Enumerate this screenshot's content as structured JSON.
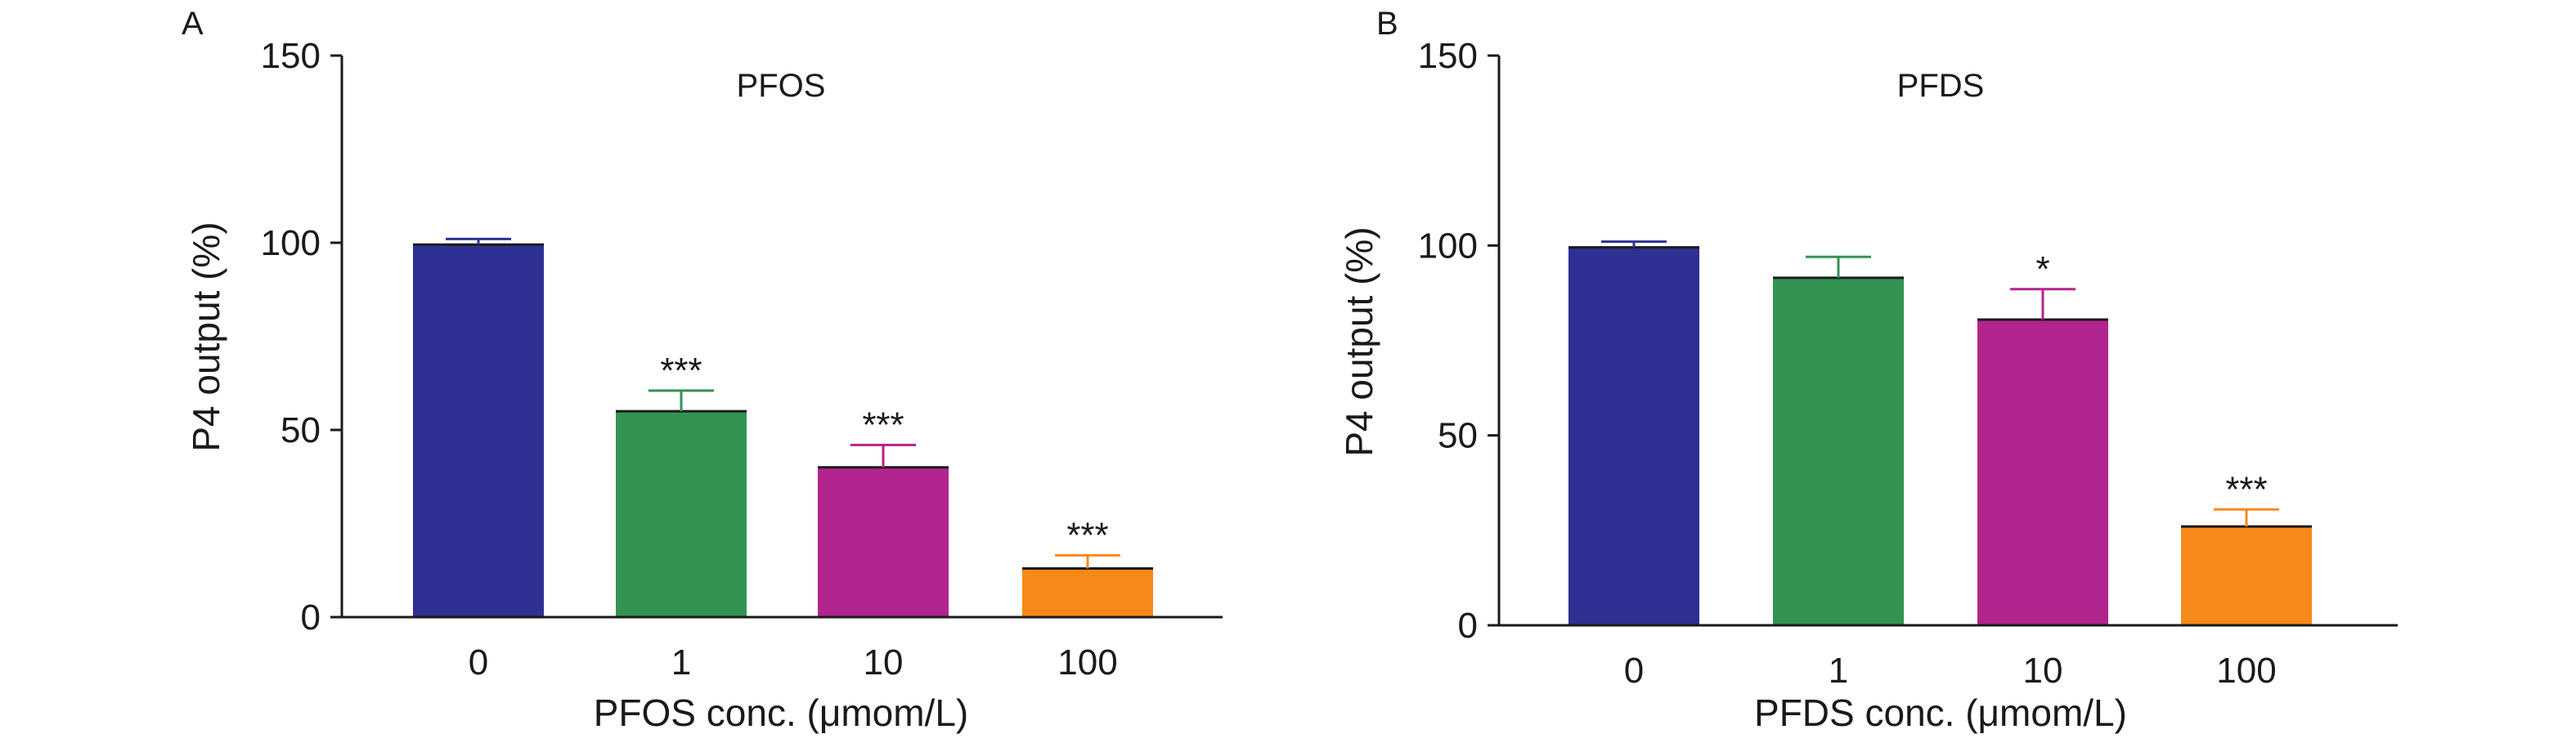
{
  "chart_data": [
    {
      "panel_label": "A",
      "type": "bar",
      "title": "PFOS",
      "xlabel": "PFOS conc.  (μmom/L)",
      "ylabel": "P4 output (%)",
      "categories": [
        "0",
        "1",
        "10",
        "100"
      ],
      "values": [
        99.5,
        55,
        40,
        13
      ],
      "errors": [
        1.5,
        5.5,
        6,
        3.5
      ],
      "significance": [
        "",
        "***",
        "***",
        "***"
      ],
      "colors": [
        "#2e3192",
        "#339353",
        "#b2258e",
        "#f7891a"
      ],
      "ylim": [
        0,
        150
      ],
      "yticks": [
        "0",
        "50",
        "100",
        "150"
      ],
      "grid": false
    },
    {
      "panel_label": "B",
      "type": "bar",
      "title": "PFDS",
      "xlabel": "PFDS conc.  (μmom/L)",
      "ylabel": "P4 output (%)",
      "categories": [
        "0",
        "1",
        "10",
        "100"
      ],
      "values": [
        99.5,
        91.5,
        80.5,
        26
      ],
      "errors": [
        1.5,
        5.5,
        8,
        4.5
      ],
      "significance": [
        "",
        "",
        "*",
        "***"
      ],
      "colors": [
        "#2e3192",
        "#339353",
        "#b2258e",
        "#f7891a"
      ],
      "ylim": [
        0,
        150
      ],
      "yticks": [
        "0",
        "50",
        "100",
        "150"
      ],
      "grid": false
    }
  ]
}
